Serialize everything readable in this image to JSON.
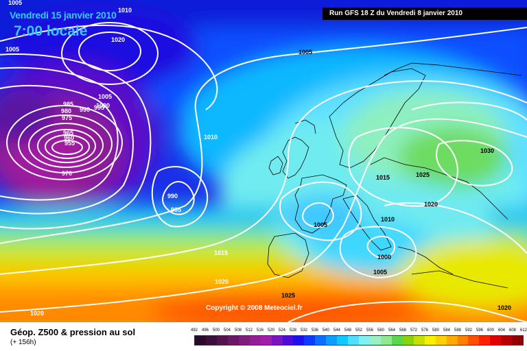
{
  "header": {
    "date": "Vendredi 15 janvier 2010",
    "time": "7:00 locale",
    "run": "Run GFS 18 Z du Vendredi 8 janvier 2010"
  },
  "copyright": "Copyright © 2008 Meteociel.fr",
  "footer": {
    "title": "Géop. Z500 & pression au sol",
    "subtitle": "(+ 156h)"
  },
  "scale": {
    "ticks": [
      "492",
      "496",
      "500",
      "504",
      "508",
      "512",
      "516",
      "520",
      "524",
      "528",
      "532",
      "536",
      "540",
      "544",
      "548",
      "552",
      "556",
      "560",
      "564",
      "568",
      "572",
      "576",
      "580",
      "584",
      "588",
      "592",
      "596",
      "600",
      "604",
      "608",
      "612"
    ],
    "colors": [
      "#2a0a2a",
      "#3c0e3c",
      "#52124e",
      "#681864",
      "#7e1e7a",
      "#941e94",
      "#a01ea8",
      "#7a14c0",
      "#4a0ed8",
      "#1a10f0",
      "#0a3cff",
      "#0a70ff",
      "#0aa0ff",
      "#10c8ff",
      "#50e0ff",
      "#80f0f0",
      "#9cf0c0",
      "#90e890",
      "#5ad84a",
      "#8ad20a",
      "#c8e000",
      "#f8f000",
      "#ffd000",
      "#ffa800",
      "#ff8000",
      "#ff5000",
      "#ff2000",
      "#e00000",
      "#b80000",
      "#900000"
    ]
  },
  "map_labels": {
    "isobars": [
      {
        "text": "1005"
      },
      {
        "text": "1010"
      },
      {
        "text": "1020"
      },
      {
        "text": "1005"
      },
      {
        "text": "1005"
      },
      {
        "text": "1000"
      },
      {
        "text": "995"
      },
      {
        "text": "990"
      },
      {
        "text": "985"
      },
      {
        "text": "980"
      },
      {
        "text": "975"
      },
      {
        "text": "965"
      },
      {
        "text": "960"
      },
      {
        "text": "955"
      },
      {
        "text": "970"
      },
      {
        "text": "1010"
      },
      {
        "text": "990"
      },
      {
        "text": "985"
      },
      {
        "text": "1015"
      },
      {
        "text": "1020"
      },
      {
        "text": "1020"
      },
      {
        "text": "1005"
      },
      {
        "text": "1015"
      },
      {
        "text": "1025"
      },
      {
        "text": "1030"
      },
      {
        "text": "1020"
      },
      {
        "text": "1010"
      },
      {
        "text": "1005"
      },
      {
        "text": "1000"
      },
      {
        "text": "1005"
      },
      {
        "text": "1025"
      },
      {
        "text": "1020"
      },
      {
        "text": "1020"
      }
    ]
  }
}
